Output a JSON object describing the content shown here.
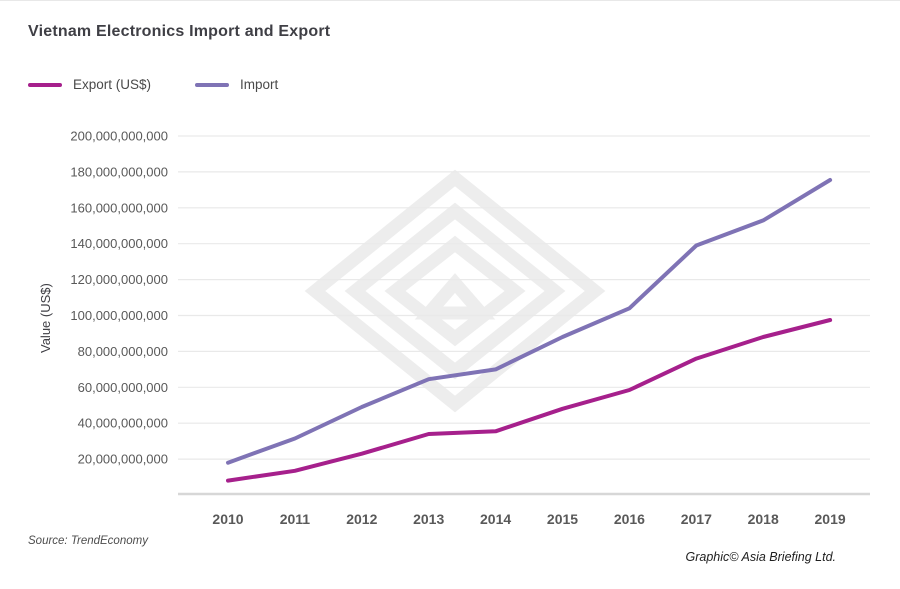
{
  "title": "Vietnam Electronics Import and Export",
  "legend": {
    "items": [
      {
        "label": "Export (US$)",
        "color": "#A6208C"
      },
      {
        "label": "Import",
        "color": "#7F73B5"
      }
    ]
  },
  "y_axis": {
    "title": "Value (US$)",
    "tick_labels": [
      "200,000,000,000",
      "180,000,000,000",
      "160,000,000,000",
      "140,000,000,000",
      "120,000,000,000",
      "100,000,000,000",
      "80,000,000,000",
      "60,000,000,000",
      "40,000,000,000",
      "20,000,000,000"
    ]
  },
  "x_axis": {
    "tick_labels": [
      "2010",
      "2011",
      "2012",
      "2013",
      "2014",
      "2015",
      "2016",
      "2017",
      "2018",
      "2019"
    ]
  },
  "footer": {
    "source": "Source: TrendEconomy",
    "credit": "Graphic© Asia Briefing Ltd."
  },
  "chart_data": {
    "type": "line",
    "title": "Vietnam Electronics Import and Export",
    "x": [
      2010,
      2011,
      2012,
      2013,
      2014,
      2015,
      2016,
      2017,
      2018,
      2019
    ],
    "series": [
      {
        "name": "Export (US$)",
        "color": "#A6208C",
        "values": [
          8000000000,
          13500000000,
          23000000000,
          34000000000,
          35500000000,
          48000000000,
          58500000000,
          76000000000,
          88000000000,
          97500000000
        ]
      },
      {
        "name": "Import",
        "color": "#7F73B5",
        "values": [
          18000000000,
          31500000000,
          49000000000,
          64500000000,
          70000000000,
          88000000000,
          104000000000,
          139000000000,
          153000000000,
          175500000000
        ]
      }
    ],
    "xlabel": "",
    "ylabel": "Value (US$)",
    "ylim": [
      0,
      200000000000
    ],
    "ytick_step": 20000000000,
    "grid": true,
    "legend_position": "top-left"
  }
}
